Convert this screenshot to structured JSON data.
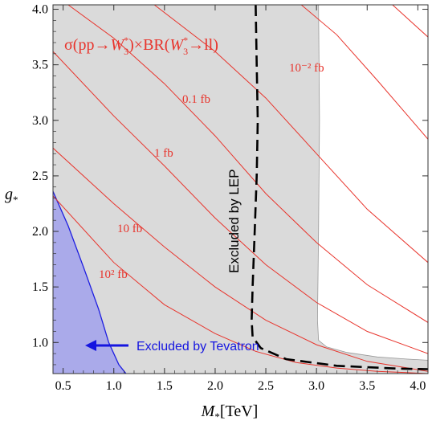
{
  "chart_data": {
    "type": "line",
    "xlabel": "M*[TeV]",
    "ylabel": "g*",
    "xlim": [
      0.4,
      4.1
    ],
    "ylim": [
      0.72,
      4.04
    ],
    "x_ticks": [
      "0.5",
      "1.0",
      "1.5",
      "2.0",
      "2.5",
      "3.0",
      "3.5",
      "4.0"
    ],
    "y_ticks": [
      "1.0",
      "1.5",
      "2.0",
      "2.5",
      "3.0",
      "3.5",
      "4.0"
    ],
    "x_tick_values": [
      0.5,
      1.0,
      1.5,
      2.0,
      2.5,
      3.0,
      3.5,
      4.0
    ],
    "y_tick_values": [
      1.0,
      1.5,
      2.0,
      2.5,
      3.0,
      3.5,
      4.0
    ],
    "title": "σ(pp→W3*)×BR(W3*→ll)",
    "colors": {
      "contour": "#e8342c",
      "grey_region": "#dadada",
      "tevatron_region": "#aaaaea",
      "tevatron_edge": "#1d1de0",
      "annotation_blue": "#1515e0",
      "lep_line": "#000000"
    },
    "contours": [
      {
        "label": "10² fb",
        "points": [
          [
            0.4,
            2.32
          ],
          [
            1.0,
            1.72
          ],
          [
            1.5,
            1.34
          ],
          [
            2.0,
            1.08
          ],
          [
            2.4,
            0.92
          ],
          [
            2.8,
            0.82
          ],
          [
            3.2,
            0.77
          ],
          [
            3.6,
            0.74
          ],
          [
            4.1,
            0.72
          ]
        ]
      },
      {
        "label": "10 fb",
        "points": [
          [
            0.4,
            2.75
          ],
          [
            1.0,
            2.25
          ],
          [
            1.5,
            1.86
          ],
          [
            2.0,
            1.5
          ],
          [
            2.5,
            1.2
          ],
          [
            3.0,
            0.98
          ],
          [
            3.5,
            0.83
          ],
          [
            4.1,
            0.74
          ]
        ]
      },
      {
        "label": "1 fb",
        "points": [
          [
            0.4,
            3.62
          ],
          [
            1.0,
            3.04
          ],
          [
            1.5,
            2.59
          ],
          [
            2.0,
            2.12
          ],
          [
            2.5,
            1.7
          ],
          [
            3.0,
            1.36
          ],
          [
            3.5,
            1.1
          ],
          [
            4.1,
            0.9
          ]
        ]
      },
      {
        "label": "0.1 fb",
        "points": [
          [
            0.55,
            4.04
          ],
          [
            1.0,
            3.74
          ],
          [
            1.5,
            3.33
          ],
          [
            2.0,
            2.86
          ],
          [
            2.5,
            2.34
          ],
          [
            3.0,
            1.9
          ],
          [
            3.5,
            1.52
          ],
          [
            4.1,
            1.18
          ]
        ]
      },
      {
        "label": "10⁻² fb",
        "points": [
          [
            1.4,
            4.04
          ],
          [
            2.0,
            3.62
          ],
          [
            2.5,
            3.2
          ],
          [
            3.0,
            2.7
          ],
          [
            3.5,
            2.2
          ],
          [
            4.1,
            1.72
          ]
        ]
      },
      {
        "label": "",
        "points": [
          [
            2.85,
            4.04
          ],
          [
            3.2,
            3.77
          ],
          [
            3.6,
            3.36
          ],
          [
            4.1,
            2.83
          ]
        ]
      },
      {
        "label": "",
        "points": [
          [
            3.75,
            4.04
          ],
          [
            4.1,
            3.75
          ]
        ]
      }
    ],
    "lep_boundary": [
      [
        2.4,
        4.04
      ],
      [
        2.41,
        3.5
      ],
      [
        2.42,
        3.0
      ],
      [
        2.41,
        2.5
      ],
      [
        2.39,
        2.0
      ],
      [
        2.37,
        1.5
      ],
      [
        2.36,
        1.2
      ],
      [
        2.37,
        1.05
      ],
      [
        2.45,
        0.95
      ],
      [
        2.7,
        0.85
      ],
      [
        3.2,
        0.79
      ],
      [
        3.8,
        0.765
      ],
      [
        4.1,
        0.76
      ]
    ],
    "grey_boundary": [
      [
        3.02,
        4.04
      ],
      [
        3.03,
        3.0
      ],
      [
        3.02,
        2.0
      ],
      [
        3.01,
        1.2
      ],
      [
        3.02,
        1.02
      ],
      [
        3.1,
        0.96
      ],
      [
        3.3,
        0.91
      ],
      [
        3.6,
        0.87
      ],
      [
        3.9,
        0.85
      ],
      [
        4.1,
        0.84
      ]
    ],
    "tevatron_boundary": [
      [
        0.4,
        2.36
      ],
      [
        0.55,
        2.05
      ],
      [
        0.7,
        1.68
      ],
      [
        0.85,
        1.3
      ],
      [
        0.95,
        1.0
      ],
      [
        1.05,
        0.8
      ],
      [
        1.12,
        0.72
      ]
    ],
    "annotations": {
      "lep": "Excluded by LEP",
      "tevatron": "Excluded by Tevatron"
    }
  }
}
